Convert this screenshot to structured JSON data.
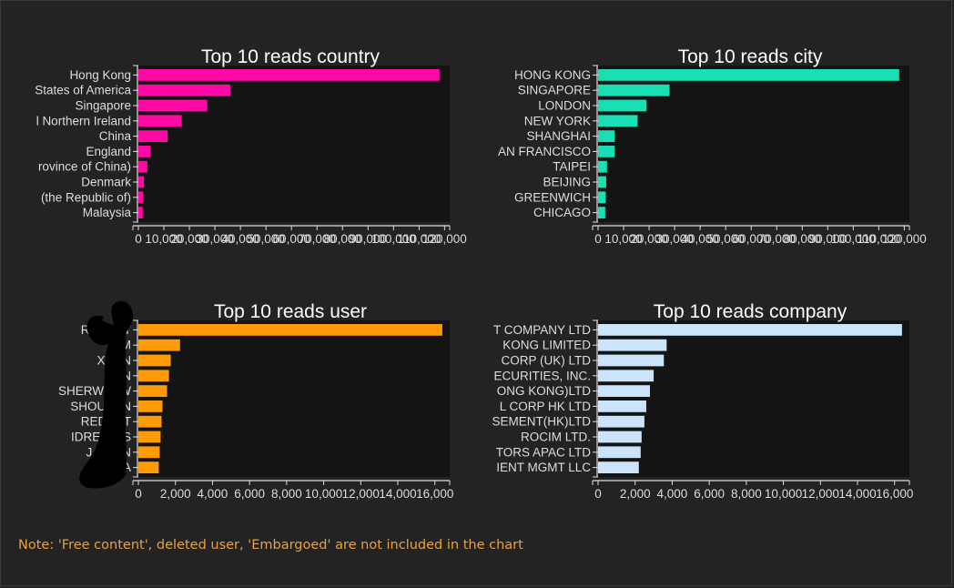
{
  "note": "Note: 'Free content', deleted user, 'Embargoed' are not included in the chart",
  "colors": {
    "background": "#232323",
    "plot_background": "#141414",
    "axis": "#dddddd",
    "text": "#dddddd",
    "note": "#e8a33d",
    "redaction": "#000000"
  },
  "chart_data": [
    {
      "type": "bar",
      "orientation": "horizontal",
      "title": "Top 10 reads country",
      "color": "#ff0aa7",
      "categories": [
        "Hong Kong",
        "States of America",
        "Singapore",
        "l Northern Ireland",
        "China",
        "England",
        "rovince of China)",
        "Denmark",
        "(the Republic of)",
        "Malaysia"
      ],
      "values": [
        118000,
        36000,
        27000,
        17000,
        11500,
        4800,
        3500,
        2200,
        1900,
        1700
      ],
      "xticks": [
        0,
        10000,
        20000,
        30000,
        40000,
        50000,
        60000,
        70000,
        80000,
        90000,
        100000,
        110000,
        120000
      ],
      "xtick_labels": [
        "0",
        "10,000",
        "20,000",
        "30,000",
        "40,000",
        "50,000",
        "60,000",
        "70,000",
        "80,000",
        "90,000",
        "100,000",
        "110,000",
        "120,000"
      ],
      "xlim": [
        0,
        122000
      ]
    },
    {
      "type": "bar",
      "orientation": "horizontal",
      "title": "Top 10 reads city",
      "color": "#19e0b4",
      "categories": [
        "HONG KONG",
        "SINGAPORE",
        "LONDON",
        "NEW YORK",
        "SHANGHAI",
        "AN FRANCISCO",
        "TAIPEI",
        "BEIJING",
        "GREENWICH",
        "CHICAGO"
      ],
      "values": [
        118000,
        28000,
        19000,
        15500,
        6500,
        6500,
        3500,
        3200,
        3000,
        2800
      ],
      "xticks": [
        0,
        10000,
        20000,
        30000,
        40000,
        50000,
        60000,
        70000,
        80000,
        90000,
        100000,
        110000,
        120000
      ],
      "xtick_labels": [
        "0",
        "10,000",
        "20,000",
        "30,000",
        "40,000",
        "50,000",
        "60,000",
        "70,000",
        "80,000",
        "90,000",
        "100,000",
        "110,000",
        "120,000"
      ],
      "xlim": [
        0,
        122000
      ]
    },
    {
      "type": "bar",
      "orientation": "horizontal",
      "title": "Top 10 reads user",
      "color": "#ff9b06",
      "categories": [
        "REDGAT",
        "KIM",
        "XUAN",
        "PAN",
        "SHERWIN W",
        "SHOUKAN",
        "REDGAT",
        "IDREA BIS",
        "JASMIN",
        "YA"
      ],
      "values": [
        16400,
        2250,
        1750,
        1650,
        1550,
        1300,
        1250,
        1200,
        1150,
        1100
      ],
      "xticks": [
        0,
        2000,
        4000,
        6000,
        8000,
        10000,
        12000,
        14000,
        16000
      ],
      "xtick_labels": [
        "0",
        "2,000",
        "4,000",
        "6,000",
        "8,000",
        "10,000",
        "12,000",
        "14,000",
        "16,000"
      ],
      "xlim": [
        0,
        16800
      ]
    },
    {
      "type": "bar",
      "orientation": "horizontal",
      "title": "Top 10 reads company",
      "color": "#cce3fc",
      "categories": [
        "T COMPANY LTD",
        "KONG LIMITED",
        "CORP (UK) LTD",
        "ECURITIES, INC.",
        "ONG KONG)LTD",
        "L CORP HK LTD",
        "SEMENT(HK)LTD",
        "ROCIM LTD.",
        "TORS APAC LTD",
        "IENT MGMT LLC"
      ],
      "values": [
        16400,
        3700,
        3550,
        3000,
        2800,
        2600,
        2500,
        2350,
        2300,
        2200
      ],
      "xticks": [
        0,
        2000,
        4000,
        6000,
        8000,
        10000,
        12000,
        14000,
        16000
      ],
      "xtick_labels": [
        "0",
        "2,000",
        "4,000",
        "6,000",
        "8,000",
        "10,000",
        "12,000",
        "14,000",
        "16,000"
      ],
      "xlim": [
        0,
        16800
      ]
    }
  ]
}
